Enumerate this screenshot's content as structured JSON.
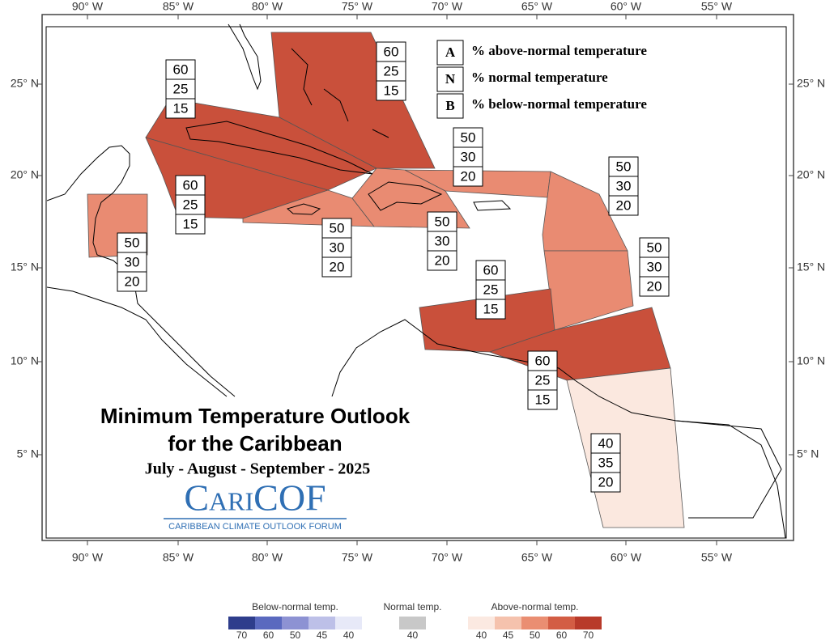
{
  "title": {
    "line1": "Minimum Temperature Outlook",
    "line2": "for the Caribbean",
    "period": "July - August - September - 2025"
  },
  "logo": {
    "name": "CariCOF",
    "subtitle": "CARIBBEAN CLIMATE OUTLOOK FORUM"
  },
  "key": [
    {
      "letter": "A",
      "text": "% above-normal temperature"
    },
    {
      "letter": "N",
      "text": "% normal temperature"
    },
    {
      "letter": "B",
      "text": "% below-normal temperature"
    }
  ],
  "lon_labels": [
    "90° W",
    "85° W",
    "80° W",
    "75° W",
    "70° W",
    "65° W",
    "60° W",
    "55° W"
  ],
  "lat_labels": [
    "25° N",
    "20° N",
    "15° N",
    "10° N",
    "5° N"
  ],
  "regions": [
    {
      "A": 60,
      "N": 25,
      "B": 15,
      "color": "#c9503b"
    },
    {
      "A": 60,
      "N": 25,
      "B": 15,
      "color": "#c9503b"
    },
    {
      "A": 60,
      "N": 25,
      "B": 15,
      "color": "#c9503b"
    },
    {
      "A": 50,
      "N": 30,
      "B": 20,
      "color": "#e98b72"
    },
    {
      "A": 50,
      "N": 30,
      "B": 20,
      "color": "#e98b72"
    },
    {
      "A": 50,
      "N": 30,
      "B": 20,
      "color": "#e98b72"
    },
    {
      "A": 50,
      "N": 30,
      "B": 20,
      "color": "#e98b72"
    },
    {
      "A": 50,
      "N": 30,
      "B": 20,
      "color": "#e98b72"
    },
    {
      "A": 50,
      "N": 30,
      "B": 20,
      "color": "#e98b72"
    },
    {
      "A": 60,
      "N": 25,
      "B": 15,
      "color": "#c9503b"
    },
    {
      "A": 60,
      "N": 25,
      "B": 15,
      "color": "#c9503b"
    },
    {
      "A": 40,
      "N": 35,
      "B": 20,
      "color": "#fbe8df"
    }
  ],
  "legend": {
    "groups": [
      {
        "title": "Below-normal temp.",
        "items": [
          {
            "label": "70",
            "color": "#2e3d8c"
          },
          {
            "label": "60",
            "color": "#5a69bf"
          },
          {
            "label": "50",
            "color": "#8d92d3"
          },
          {
            "label": "45",
            "color": "#bdc0e8"
          },
          {
            "label": "40",
            "color": "#e7e9f8"
          }
        ]
      },
      {
        "title": "Normal temp.",
        "items": [
          {
            "label": "40",
            "color": "#c8c8c8"
          }
        ]
      },
      {
        "title": "Above-normal temp.",
        "items": [
          {
            "label": "40",
            "color": "#fbe9e1"
          },
          {
            "label": "45",
            "color": "#f5c2ad"
          },
          {
            "label": "50",
            "color": "#ea8e72"
          },
          {
            "label": "60",
            "color": "#d35d44"
          },
          {
            "label": "70",
            "color": "#b83a2a"
          }
        ]
      }
    ]
  }
}
